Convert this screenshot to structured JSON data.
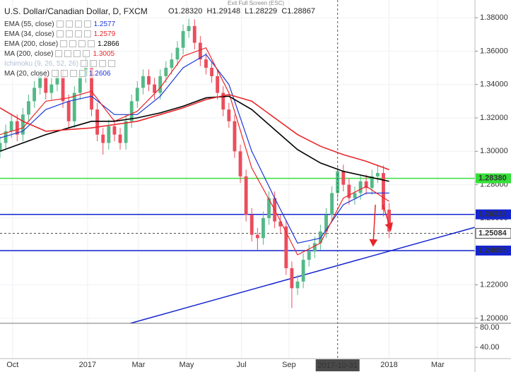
{
  "header": {
    "title": "U.S. Dollar/Canadian Dollar, D, FXCM",
    "ohlc": [
      "O1.28320",
      "H1.29148",
      "L1.28229",
      "C1.28867"
    ],
    "exit_fullscreen": "Exit Full Screen (ESC)"
  },
  "chart_data": [
    {
      "type": "candlestick",
      "up_color": "#53b987",
      "down_color": "#eb4d5c",
      "open": [
        1.3,
        1.305,
        1.312,
        1.318,
        1.31,
        1.322,
        1.33,
        1.338,
        1.345,
        1.335,
        1.34,
        1.345,
        1.33,
        1.318,
        1.335,
        1.345,
        1.35,
        1.325,
        1.31,
        1.305,
        1.315,
        1.31,
        1.305,
        1.318,
        1.33,
        1.338,
        1.345,
        1.34,
        1.335,
        1.345,
        1.35,
        1.355,
        1.362,
        1.372,
        1.375,
        1.365,
        1.355,
        1.35,
        1.345,
        1.335,
        1.325,
        1.318,
        1.3,
        1.285,
        1.262,
        1.25,
        1.248,
        1.26,
        1.272,
        1.258,
        1.255,
        1.23,
        1.218,
        1.222,
        1.235,
        1.24,
        1.245,
        1.252,
        1.262,
        1.275,
        1.288,
        1.28,
        1.272,
        1.275,
        1.282,
        1.278,
        1.285,
        1.287,
        1.265
      ],
      "high": [
        1.309,
        1.316,
        1.322,
        1.322,
        1.326,
        1.334,
        1.342,
        1.349,
        1.349,
        1.344,
        1.349,
        1.349,
        1.334,
        1.339,
        1.349,
        1.358,
        1.354,
        1.329,
        1.314,
        1.319,
        1.319,
        1.314,
        1.322,
        1.334,
        1.342,
        1.349,
        1.349,
        1.344,
        1.349,
        1.354,
        1.359,
        1.366,
        1.376,
        1.3793,
        1.379,
        1.369,
        1.359,
        1.354,
        1.349,
        1.339,
        1.329,
        1.322,
        1.304,
        1.289,
        1.266,
        1.254,
        1.264,
        1.276,
        1.276,
        1.262,
        1.259,
        1.234,
        1.226,
        1.239,
        1.244,
        1.249,
        1.256,
        1.266,
        1.279,
        1.2916,
        1.292,
        1.284,
        1.279,
        1.286,
        1.286,
        1.289,
        1.2915,
        1.2915,
        1.269
      ],
      "low": [
        1.296,
        1.301,
        1.308,
        1.306,
        1.306,
        1.318,
        1.326,
        1.334,
        1.331,
        1.331,
        1.336,
        1.326,
        1.314,
        1.314,
        1.331,
        1.341,
        1.321,
        1.306,
        1.298,
        1.301,
        1.306,
        1.301,
        1.301,
        1.314,
        1.326,
        1.334,
        1.336,
        1.331,
        1.331,
        1.341,
        1.346,
        1.351,
        1.358,
        1.368,
        1.361,
        1.351,
        1.346,
        1.341,
        1.331,
        1.321,
        1.314,
        1.296,
        1.281,
        1.258,
        1.246,
        1.241,
        1.244,
        1.256,
        1.254,
        1.251,
        1.226,
        1.2061,
        1.214,
        1.218,
        1.231,
        1.236,
        1.241,
        1.248,
        1.258,
        1.271,
        1.276,
        1.268,
        1.268,
        1.271,
        1.274,
        1.274,
        1.281,
        1.261,
        1.248
      ],
      "close": [
        1.305,
        1.312,
        1.318,
        1.31,
        1.322,
        1.33,
        1.338,
        1.345,
        1.335,
        1.34,
        1.345,
        1.33,
        1.318,
        1.335,
        1.345,
        1.35,
        1.325,
        1.31,
        1.305,
        1.315,
        1.31,
        1.305,
        1.318,
        1.33,
        1.338,
        1.345,
        1.34,
        1.335,
        1.345,
        1.35,
        1.355,
        1.362,
        1.372,
        1.375,
        1.365,
        1.355,
        1.35,
        1.345,
        1.335,
        1.325,
        1.318,
        1.3,
        1.285,
        1.262,
        1.25,
        1.248,
        1.26,
        1.272,
        1.258,
        1.255,
        1.23,
        1.218,
        1.222,
        1.235,
        1.24,
        1.245,
        1.252,
        1.262,
        1.275,
        1.288,
        1.28,
        1.272,
        1.275,
        1.282,
        1.278,
        1.285,
        1.287,
        1.265,
        1.252
      ],
      "series": [
        {
          "name": "EMA (55, close)",
          "last": 1.2577,
          "color": "#1c37d6",
          "x": [
            0,
            4,
            8,
            12,
            16,
            20,
            24,
            28,
            32,
            36,
            40,
            44,
            48,
            52,
            56,
            60,
            64,
            68
          ],
          "values": [
            1.308,
            1.312,
            1.325,
            1.33,
            1.333,
            1.322,
            1.322,
            1.333,
            1.35,
            1.358,
            1.34,
            1.3,
            1.272,
            1.245,
            1.248,
            1.268,
            1.275,
            1.275
          ]
        },
        {
          "name": "EMA (34, close)",
          "last": 1.2579,
          "color": "#e8262a",
          "x": [
            0,
            4,
            8,
            12,
            16,
            20,
            24,
            28,
            32,
            36,
            40,
            44,
            48,
            52,
            56,
            60,
            64,
            68
          ],
          "values": [
            1.31,
            1.314,
            1.33,
            1.332,
            1.336,
            1.318,
            1.324,
            1.338,
            1.357,
            1.362,
            1.335,
            1.29,
            1.265,
            1.238,
            1.245,
            1.272,
            1.279,
            1.27
          ]
        },
        {
          "name": "EMA (200, close)",
          "last": 1.2866,
          "color": "#000000",
          "x": [
            0,
            4,
            8,
            12,
            16,
            20,
            24,
            28,
            32,
            36,
            40,
            44,
            48,
            52,
            56,
            60,
            64,
            68
          ],
          "values": [
            1.3,
            1.305,
            1.31,
            1.314,
            1.318,
            1.318,
            1.32,
            1.323,
            1.327,
            1.332,
            1.333,
            1.325,
            1.313,
            1.301,
            1.293,
            1.288,
            1.285,
            1.282
          ]
        },
        {
          "name": "MA (200, close)",
          "last": 1.3005,
          "color": "#e8262a",
          "x": [
            0,
            4,
            8,
            12,
            16,
            20,
            24,
            28,
            32,
            36,
            40,
            44,
            48,
            52,
            56,
            60,
            64,
            68
          ],
          "values": [
            1.326,
            1.318,
            1.312,
            1.313,
            1.314,
            1.316,
            1.318,
            1.322,
            1.326,
            1.331,
            1.334,
            1.33,
            1.32,
            1.31,
            1.303,
            1.298,
            1.294,
            1.289
          ]
        },
        {
          "name": "Ichimoku (9, 26, 52, 26)",
          "color": "#b3c1d6"
        },
        {
          "name": "MA (20, close)",
          "last": 1.2606,
          "color": "#1c37d6"
        }
      ],
      "xlim": [
        0,
        83
      ],
      "xticks": [
        {
          "value": 2.2,
          "label": "Oct"
        },
        {
          "value": 15.3,
          "label": "2017"
        },
        {
          "value": 24.2,
          "label": "Mar"
        },
        {
          "value": 32.6,
          "label": "May"
        },
        {
          "value": 42.2,
          "label": "Jul"
        },
        {
          "value": 50.5,
          "label": "Sep"
        },
        {
          "value": 68,
          "label": "2018"
        },
        {
          "value": 76.5,
          "label": "Mar"
        }
      ],
      "crosshair": {
        "value": 59,
        "label": "2017-10-31"
      },
      "ylim": [
        1.197,
        1.3906
      ],
      "yticks": [
        {
          "value": 1.2,
          "label": "1.20000"
        },
        {
          "value": 1.22,
          "label": "1.22000"
        },
        {
          "value": 1.24,
          "label": "1.24000"
        },
        {
          "value": 1.26,
          "label": "1.26000"
        },
        {
          "value": 1.28,
          "label": "1.28000"
        },
        {
          "value": 1.3,
          "label": "1.30000"
        },
        {
          "value": 1.32,
          "label": "1.32000"
        },
        {
          "value": 1.34,
          "label": "1.34000"
        },
        {
          "value": 1.36,
          "label": "1.36000"
        },
        {
          "value": 1.38,
          "label": "1.38000"
        }
      ],
      "grid": true,
      "hlines": [
        {
          "value": 1.2838,
          "label": "1.28380",
          "color": "#35e03a",
          "text_color": "#000000"
        },
        {
          "value": 1.26222,
          "label": "1.26222",
          "color": "#1424d0",
          "text_color": "#ffffff"
        },
        {
          "value": 1.24055,
          "label": "1.24055",
          "color": "#1424d0",
          "text_color": "#ffffff"
        },
        {
          "value": 1.25084,
          "label": "1.25084",
          "color": "#444444",
          "text_color": "#000000",
          "dashed": true
        }
      ],
      "trendline": {
        "color": "#1424d0",
        "x": [
          22.8,
          83
        ],
        "values": [
          1.197,
          1.2545
        ]
      },
      "arrows": [
        {
          "color": "#e8262a",
          "x": [
            65.6,
            65.2
          ],
          "values": [
            1.268,
            1.2435
          ]
        },
        {
          "color": "#e8262a",
          "x": [
            66.9,
            68.3
          ],
          "values": [
            1.268,
            1.2532
          ]
        }
      ]
    },
    {
      "type": "indicator-pane",
      "ylim": [
        17.1,
        88.6
      ],
      "yticks": [
        {
          "value": 80,
          "label": "80.00"
        },
        {
          "value": 40,
          "label": "40.00"
        }
      ]
    }
  ]
}
